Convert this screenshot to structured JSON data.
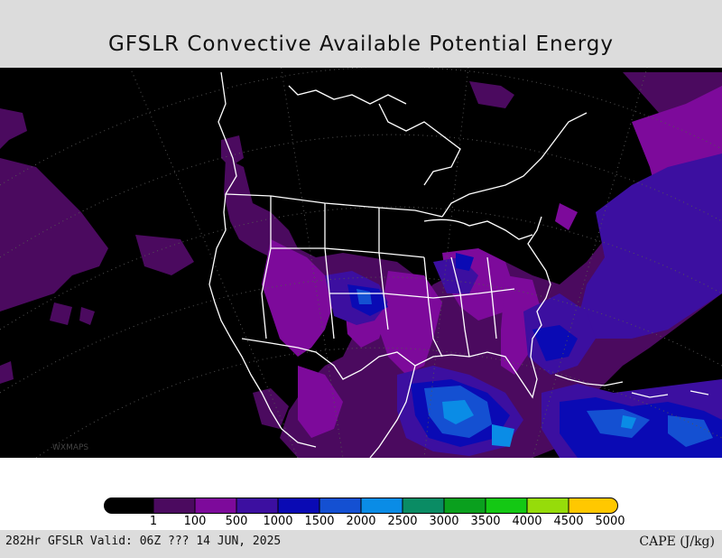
{
  "title": "GFSLR Convective Available Potential Energy",
  "footer": {
    "valid_text": "282Hr GFSLR Valid: 06Z ??? 14 JUN, 2025",
    "units_text": "CAPE (J/kg)"
  },
  "watermark": "WXMAPS",
  "legend": {
    "ticks": [
      "1",
      "100",
      "500",
      "1000",
      "1500",
      "2000",
      "2500",
      "3000",
      "3500",
      "4000",
      "4500",
      "5000"
    ],
    "colors": [
      "#000000",
      "#4b0a5f",
      "#7d0a9b",
      "#3c0fa0",
      "#0a0ab4",
      "#1450d2",
      "#0a8ce6",
      "#0a8c64",
      "#0aa01e",
      "#14c814",
      "#96dc0a",
      "#ffc800"
    ]
  },
  "map": {
    "region": "North America",
    "colors": {
      "land_outline": "#ffffff",
      "low_cape": "#4b0a5f",
      "mid_cape": "#7d0a9b",
      "high_cape": "#3c0fa0",
      "very_high_cape": "#0a0ab4",
      "extreme_cape": "#1450d2",
      "peak_cape": "#0a8ce6"
    }
  }
}
